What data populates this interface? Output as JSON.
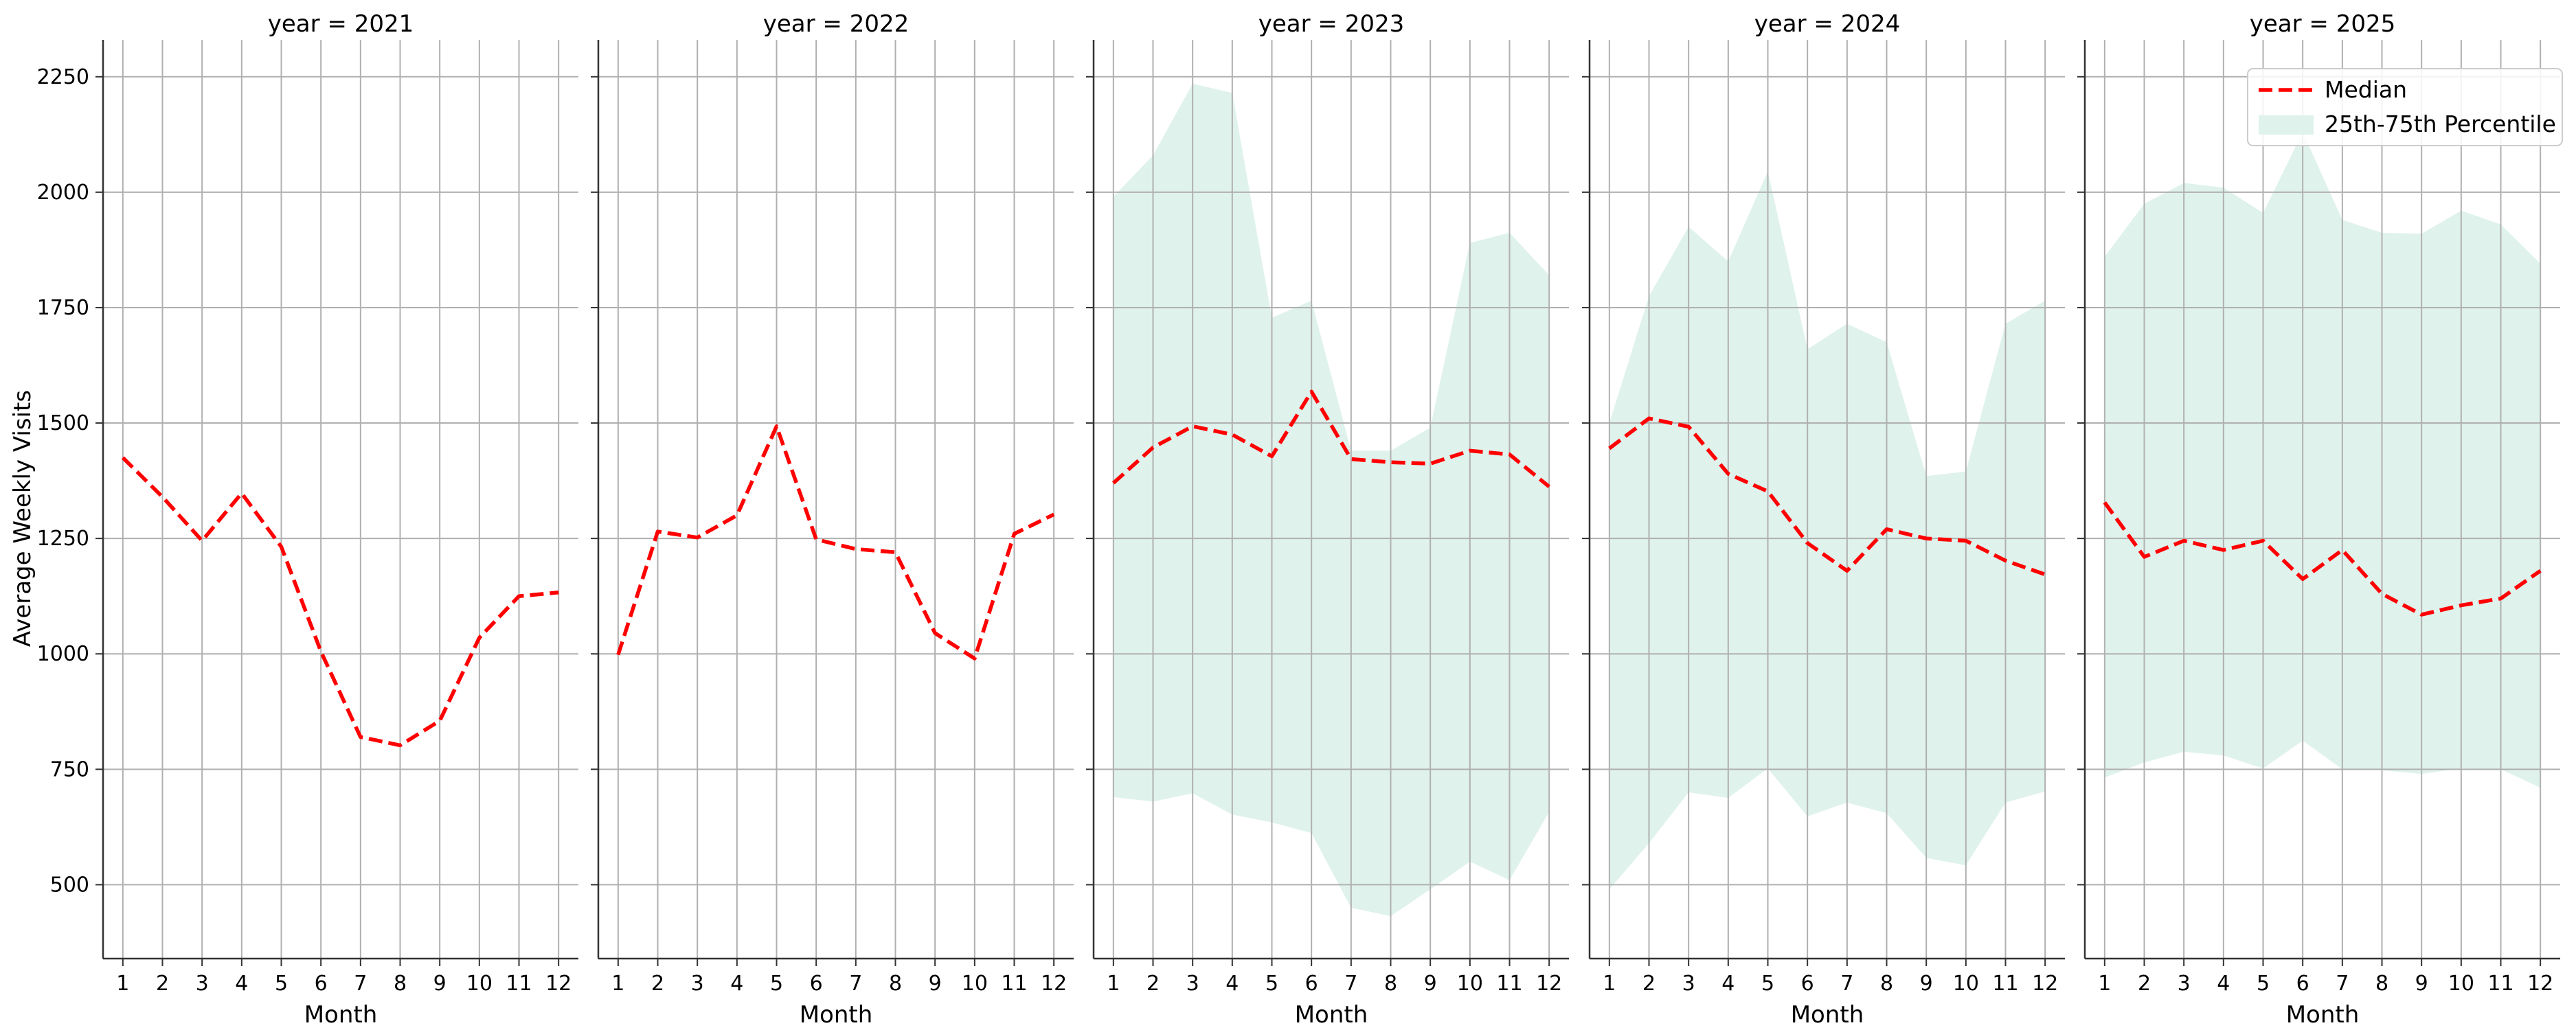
{
  "chart_data": {
    "type": "line",
    "ylabel": "Average Weekly Visits",
    "xlabel": "Month",
    "x": [
      1,
      2,
      3,
      4,
      5,
      6,
      7,
      8,
      9,
      10,
      11,
      12
    ],
    "ylim": [
      340,
      2330
    ],
    "xlim": [
      0.5,
      12.5
    ],
    "yticks": [
      500,
      750,
      1000,
      1250,
      1500,
      1750,
      2000,
      2250
    ],
    "grid": true,
    "legend": {
      "location": "top-right",
      "median_label": "Median",
      "band_label": "25th-75th Percentile"
    },
    "colors": {
      "median": "#ff0000",
      "band": "#dff2ec",
      "grid": "#b0b0b0",
      "axis": "#333333"
    },
    "panels": [
      {
        "title": "year = 2021",
        "median": [
          1425,
          1340,
          1245,
          1348,
          1232,
          1005,
          820,
          802,
          855,
          1035,
          1125,
          1133
        ],
        "q25": null,
        "q75": null
      },
      {
        "title": "year = 2022",
        "median": [
          998,
          1265,
          1252,
          1300,
          1493,
          1248,
          1227,
          1220,
          1045,
          990,
          1260,
          1302
        ],
        "q25": null,
        "q75": null
      },
      {
        "title": "year = 2023",
        "median": [
          1370,
          1447,
          1493,
          1475,
          1428,
          1568,
          1422,
          1415,
          1412,
          1440,
          1432,
          1362
        ],
        "q25": [
          690,
          680,
          698,
          652,
          635,
          612,
          450,
          432,
          490,
          550,
          510,
          658
        ],
        "q75": [
          1990,
          2080,
          2235,
          2215,
          1728,
          1765,
          1440,
          1440,
          1490,
          1890,
          1912,
          1820
        ]
      },
      {
        "title": "year = 2024",
        "median": [
          1445,
          1510,
          1492,
          1390,
          1352,
          1240,
          1180,
          1270,
          1250,
          1245,
          1202,
          1172
        ],
        "q25": [
          490,
          590,
          700,
          688,
          752,
          648,
          678,
          655,
          558,
          542,
          678,
          702
        ],
        "q75": [
          1500,
          1775,
          1925,
          1850,
          2045,
          1660,
          1715,
          1675,
          1385,
          1395,
          1715,
          1765
        ]
      },
      {
        "title": "year = 2025",
        "median": [
          1328,
          1210,
          1245,
          1225,
          1245,
          1162,
          1225,
          1130,
          1085,
          1105,
          1120,
          1180
        ],
        "q25": [
          732,
          765,
          788,
          780,
          752,
          812,
          750,
          748,
          740,
          752,
          750,
          710
        ],
        "q75": [
          1860,
          1975,
          2020,
          2010,
          1955,
          2130,
          1940,
          1912,
          1910,
          1960,
          1930,
          1845
        ]
      }
    ]
  }
}
